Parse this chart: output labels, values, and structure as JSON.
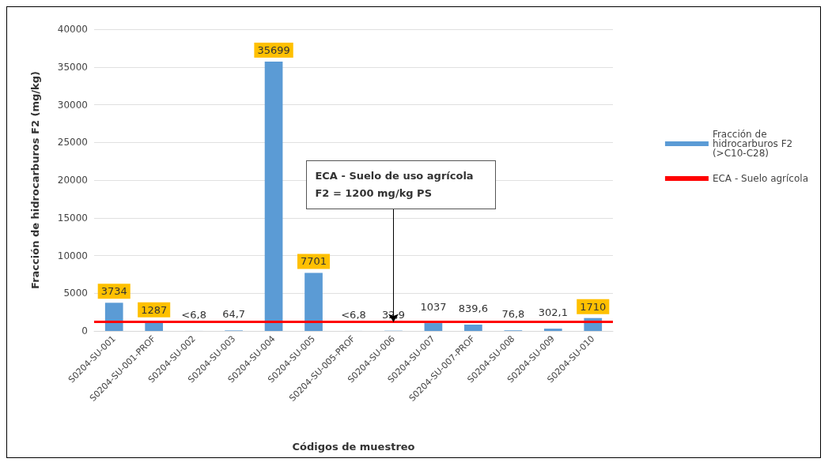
{
  "chart_data": {
    "type": "bar",
    "xlabel": "Códigos de muestreo",
    "ylabel": "Fracción de hidrocarburos F2 (mg/kg)",
    "categories": [
      "S0204-SU-001",
      "S0204-SU-001-PROF",
      "S0204-SU-002",
      "S0204-SU-003",
      "S0204-SU-004",
      "S0204-SU-005",
      "S0204-SU-005-PROF",
      "S0204-SU-006",
      "S0204-SU-007",
      "S0204-SU-007-PROF",
      "S0204-SU-008",
      "S0204-SU-009",
      "S0204-SU-010"
    ],
    "series": [
      {
        "name": "Fracción de hidrocarburos F2 (>C10-C28)",
        "color": "#5b9bd5",
        "values": [
          3734,
          1287,
          6.8,
          64.7,
          35699,
          7701,
          6.8,
          32.9,
          1037,
          839.6,
          76.8,
          302.1,
          1710
        ],
        "value_labels": [
          "3734",
          "1287",
          "<6,8",
          "64,7",
          "35699",
          "7701",
          "<6,8",
          "32,9",
          "1037",
          "839,6",
          "76,8",
          "302,1",
          "1710"
        ]
      }
    ],
    "ref_lines": [
      {
        "axis": "y",
        "value": 1200,
        "label": "ECA - Suelo agrícola",
        "color": "#ff0000",
        "line_style": "solid"
      }
    ],
    "annotations": [
      {
        "text": "ECA - Suelo de uso agrícola\nF2 = 1200 mg/kg PS",
        "x": "S0204-SU-006",
        "y": 1200
      }
    ],
    "ylim": [
      0,
      40000
    ],
    "yticks": [
      0,
      5000,
      10000,
      15000,
      20000,
      25000,
      30000,
      35000,
      40000
    ],
    "grid": "y",
    "legend": "right"
  }
}
